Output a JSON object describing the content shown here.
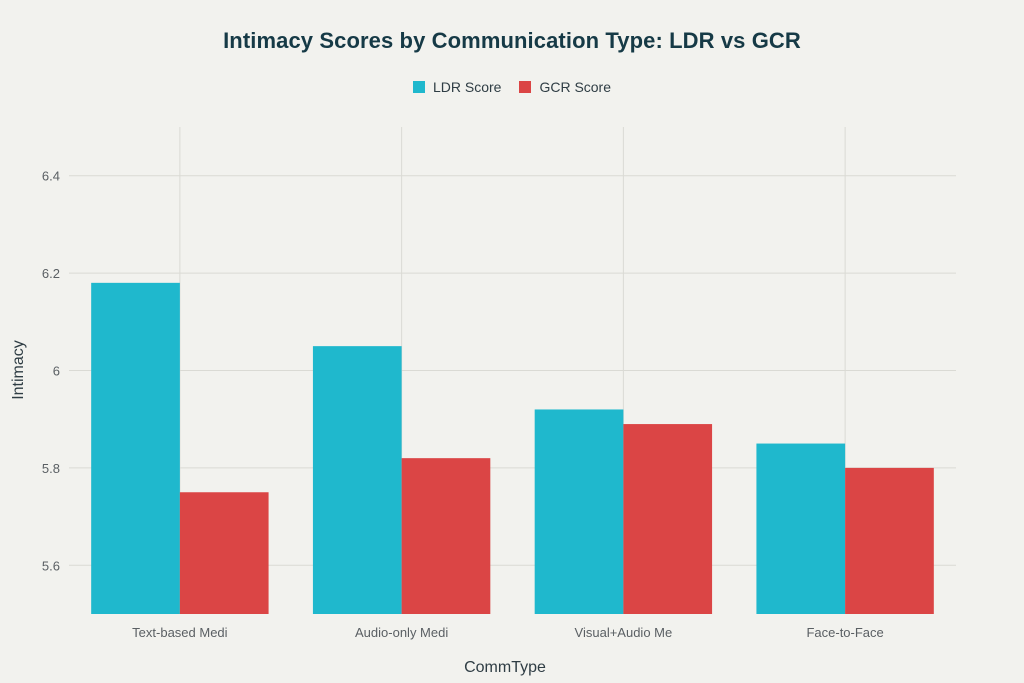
{
  "chart_data": {
    "type": "bar",
    "title": "Intimacy Scores by Communication Type: LDR vs GCR",
    "xlabel": "CommType",
    "ylabel": "Intimacy",
    "categories": [
      "Text-based Medi",
      "Audio-only Medi",
      "Visual+Audio Me",
      "Face-to-Face"
    ],
    "series": [
      {
        "name": "LDR Score",
        "color": "#1fb8cd",
        "values": [
          6.18,
          6.05,
          5.92,
          5.85
        ]
      },
      {
        "name": "GCR Score",
        "color": "#db4545",
        "values": [
          5.75,
          5.82,
          5.89,
          5.8
        ]
      }
    ],
    "ylim": [
      5.5,
      6.5
    ],
    "yticks": [
      "5.6",
      "5.8",
      "6",
      "6.2",
      "6.4"
    ],
    "grid": true,
    "legend": "top-center"
  }
}
